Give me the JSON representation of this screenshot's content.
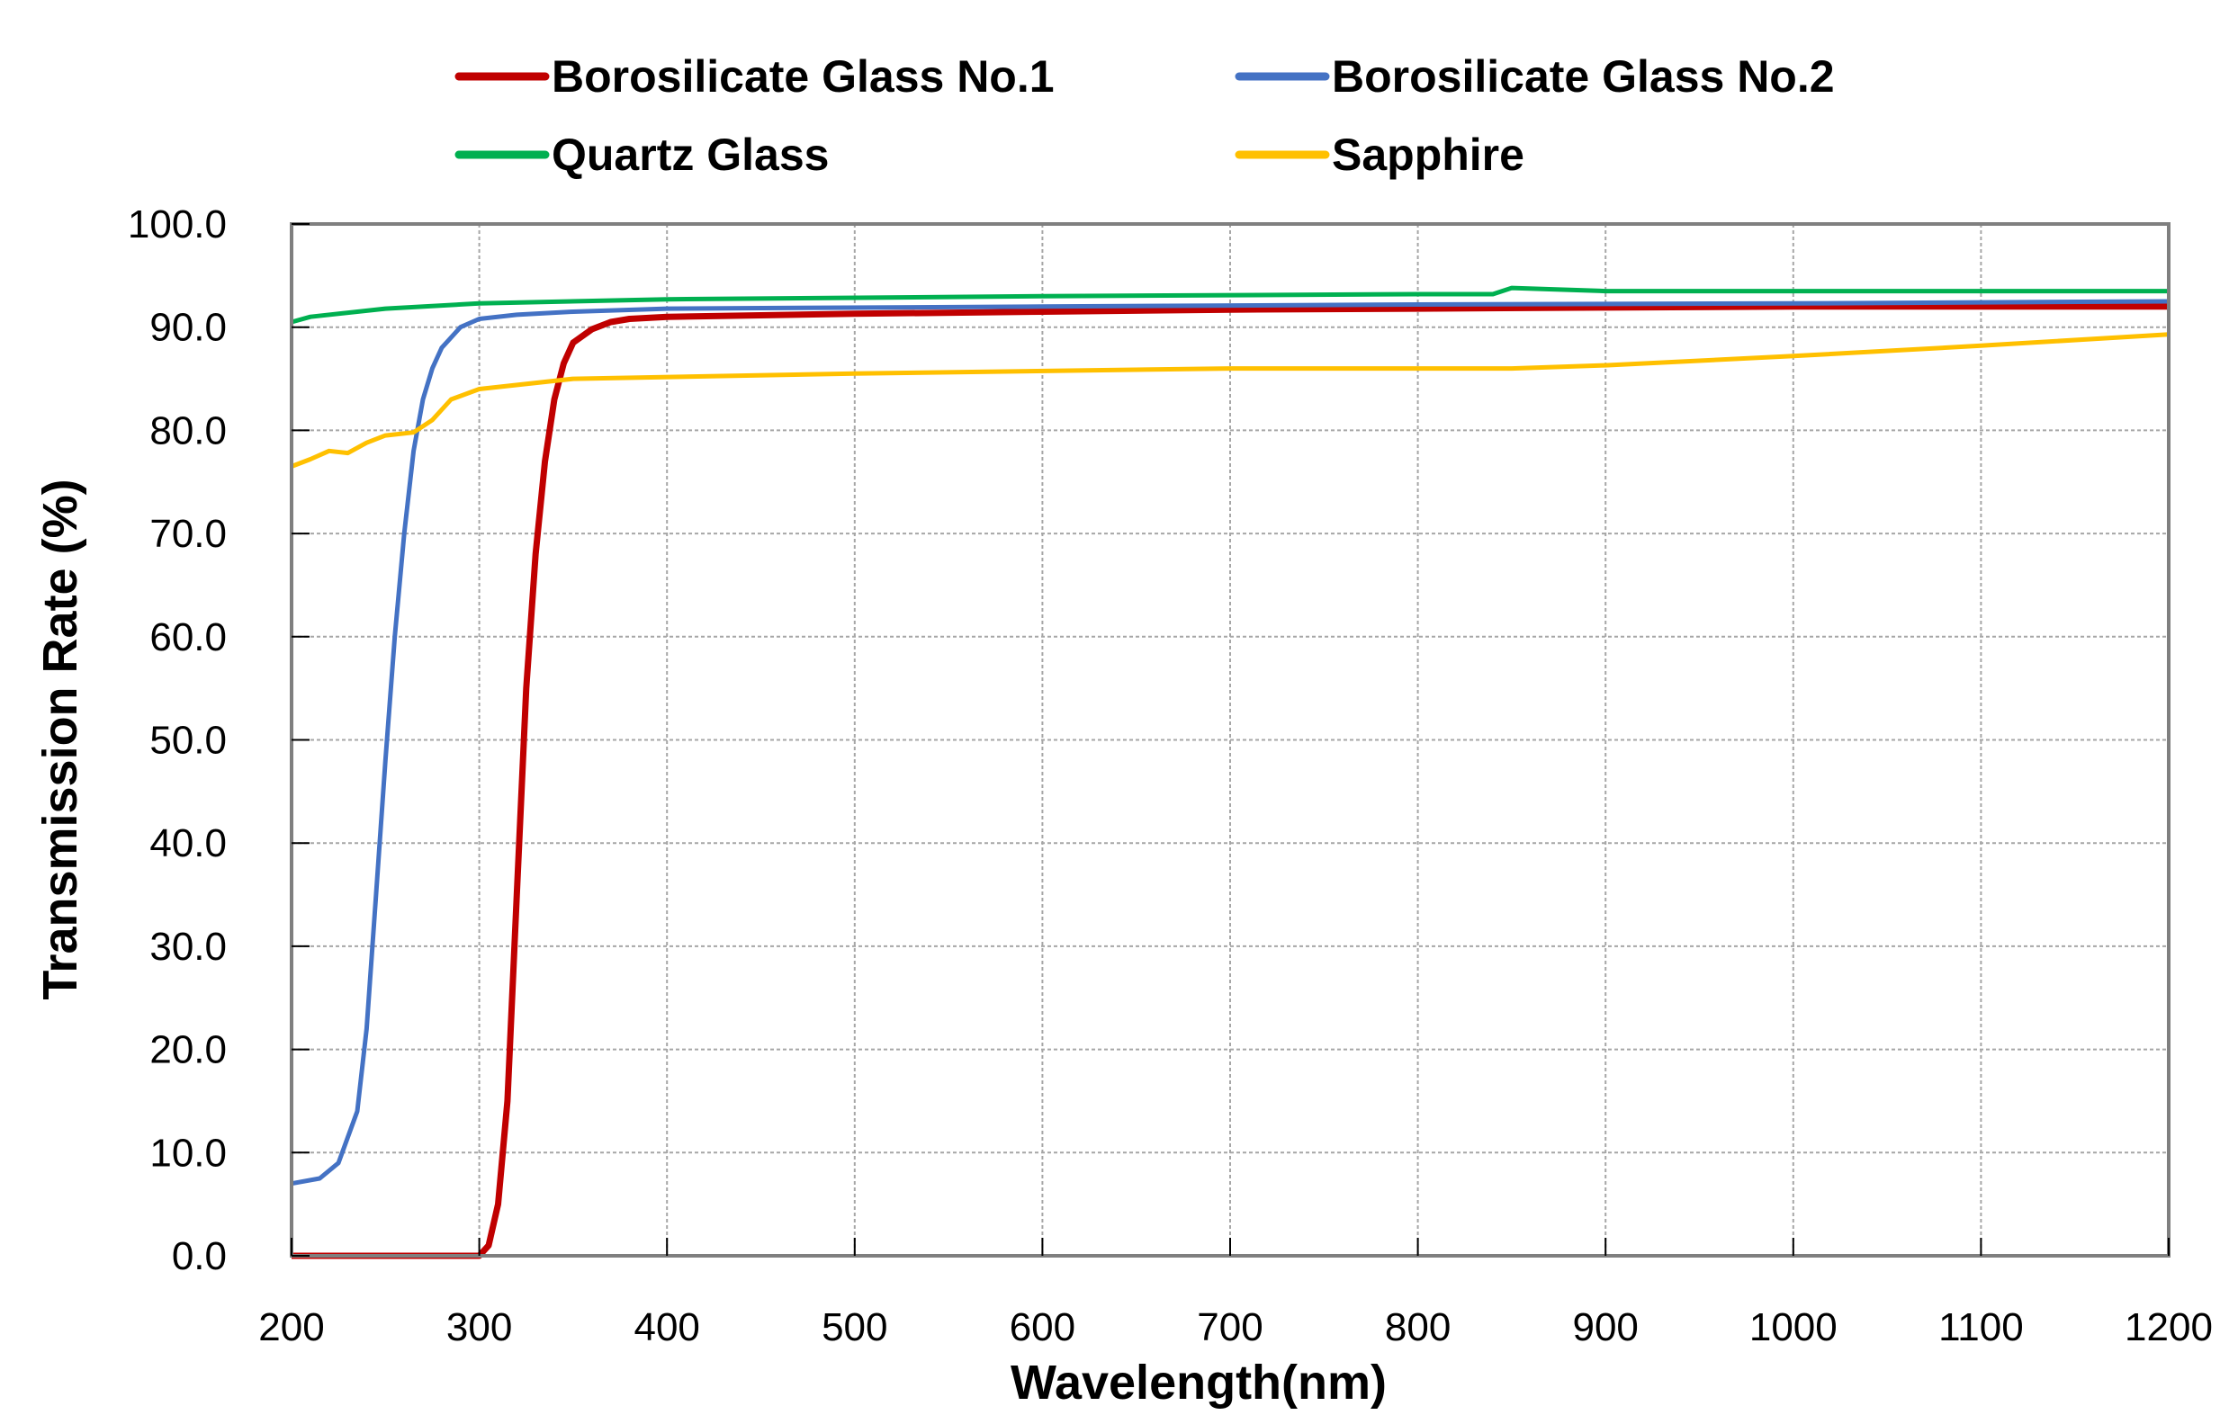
{
  "chart_data": {
    "type": "line",
    "title": "",
    "xlabel": "Wavelength(nm)",
    "ylabel": "Transmission Rate (%)",
    "xlim": [
      200,
      1200
    ],
    "ylim": [
      0,
      100
    ],
    "xticks": [
      200,
      300,
      400,
      500,
      600,
      700,
      800,
      900,
      1000,
      1100,
      1200
    ],
    "yticks": [
      0,
      10,
      20,
      30,
      40,
      50,
      60,
      70,
      80,
      90,
      100
    ],
    "ytick_labels": [
      "0.0",
      "10.0",
      "20.0",
      "30.0",
      "40.0",
      "50.0",
      "60.0",
      "70.0",
      "80.0",
      "90.0",
      "100.0"
    ],
    "xtick_labels": [
      "200",
      "300",
      "400",
      "500",
      "600",
      "700",
      "800",
      "900",
      "1000",
      "1100",
      "1200"
    ],
    "grid": true,
    "legend_position": "top",
    "series": [
      {
        "name": "Borosilicate Glass No.1",
        "color": "#c00000",
        "x": [
          200,
          300,
          305,
          310,
          315,
          320,
          325,
          330,
          335,
          340,
          345,
          350,
          360,
          370,
          380,
          400,
          500,
          600,
          700,
          800,
          900,
          1000,
          1100,
          1200
        ],
        "y": [
          0,
          0,
          1,
          5,
          15,
          35,
          55,
          68,
          77,
          83,
          86.5,
          88.5,
          89.8,
          90.5,
          90.8,
          91,
          91.3,
          91.5,
          91.7,
          91.8,
          91.9,
          92,
          92,
          92
        ]
      },
      {
        "name": "Borosilicate Glass No.2",
        "color": "#4472c4",
        "x": [
          200,
          215,
          225,
          235,
          240,
          245,
          250,
          255,
          260,
          265,
          270,
          275,
          280,
          290,
          300,
          320,
          350,
          400,
          600,
          800,
          1000,
          1200
        ],
        "y": [
          7,
          7.5,
          9,
          14,
          22,
          35,
          48,
          60,
          70,
          78,
          83,
          86,
          88,
          90,
          90.8,
          91.2,
          91.5,
          91.8,
          92,
          92.2,
          92.3,
          92.5
        ]
      },
      {
        "name": "Quartz Glass",
        "color": "#00b050",
        "x": [
          200,
          210,
          250,
          300,
          400,
          600,
          800,
          840,
          850,
          900,
          1000,
          1200
        ],
        "y": [
          90.5,
          91,
          91.8,
          92.3,
          92.7,
          93,
          93.2,
          93.2,
          93.8,
          93.5,
          93.5,
          93.5
        ]
      },
      {
        "name": "Sapphire",
        "color": "#ffc000",
        "x": [
          200,
          210,
          220,
          230,
          240,
          250,
          265,
          275,
          285,
          300,
          350,
          500,
          700,
          850,
          900,
          1000,
          1100,
          1200
        ],
        "y": [
          76.5,
          77.2,
          78,
          77.8,
          78.8,
          79.5,
          79.8,
          81,
          83,
          84,
          85,
          85.5,
          86,
          86,
          86.3,
          87.2,
          88.2,
          89.3
        ]
      }
    ]
  }
}
